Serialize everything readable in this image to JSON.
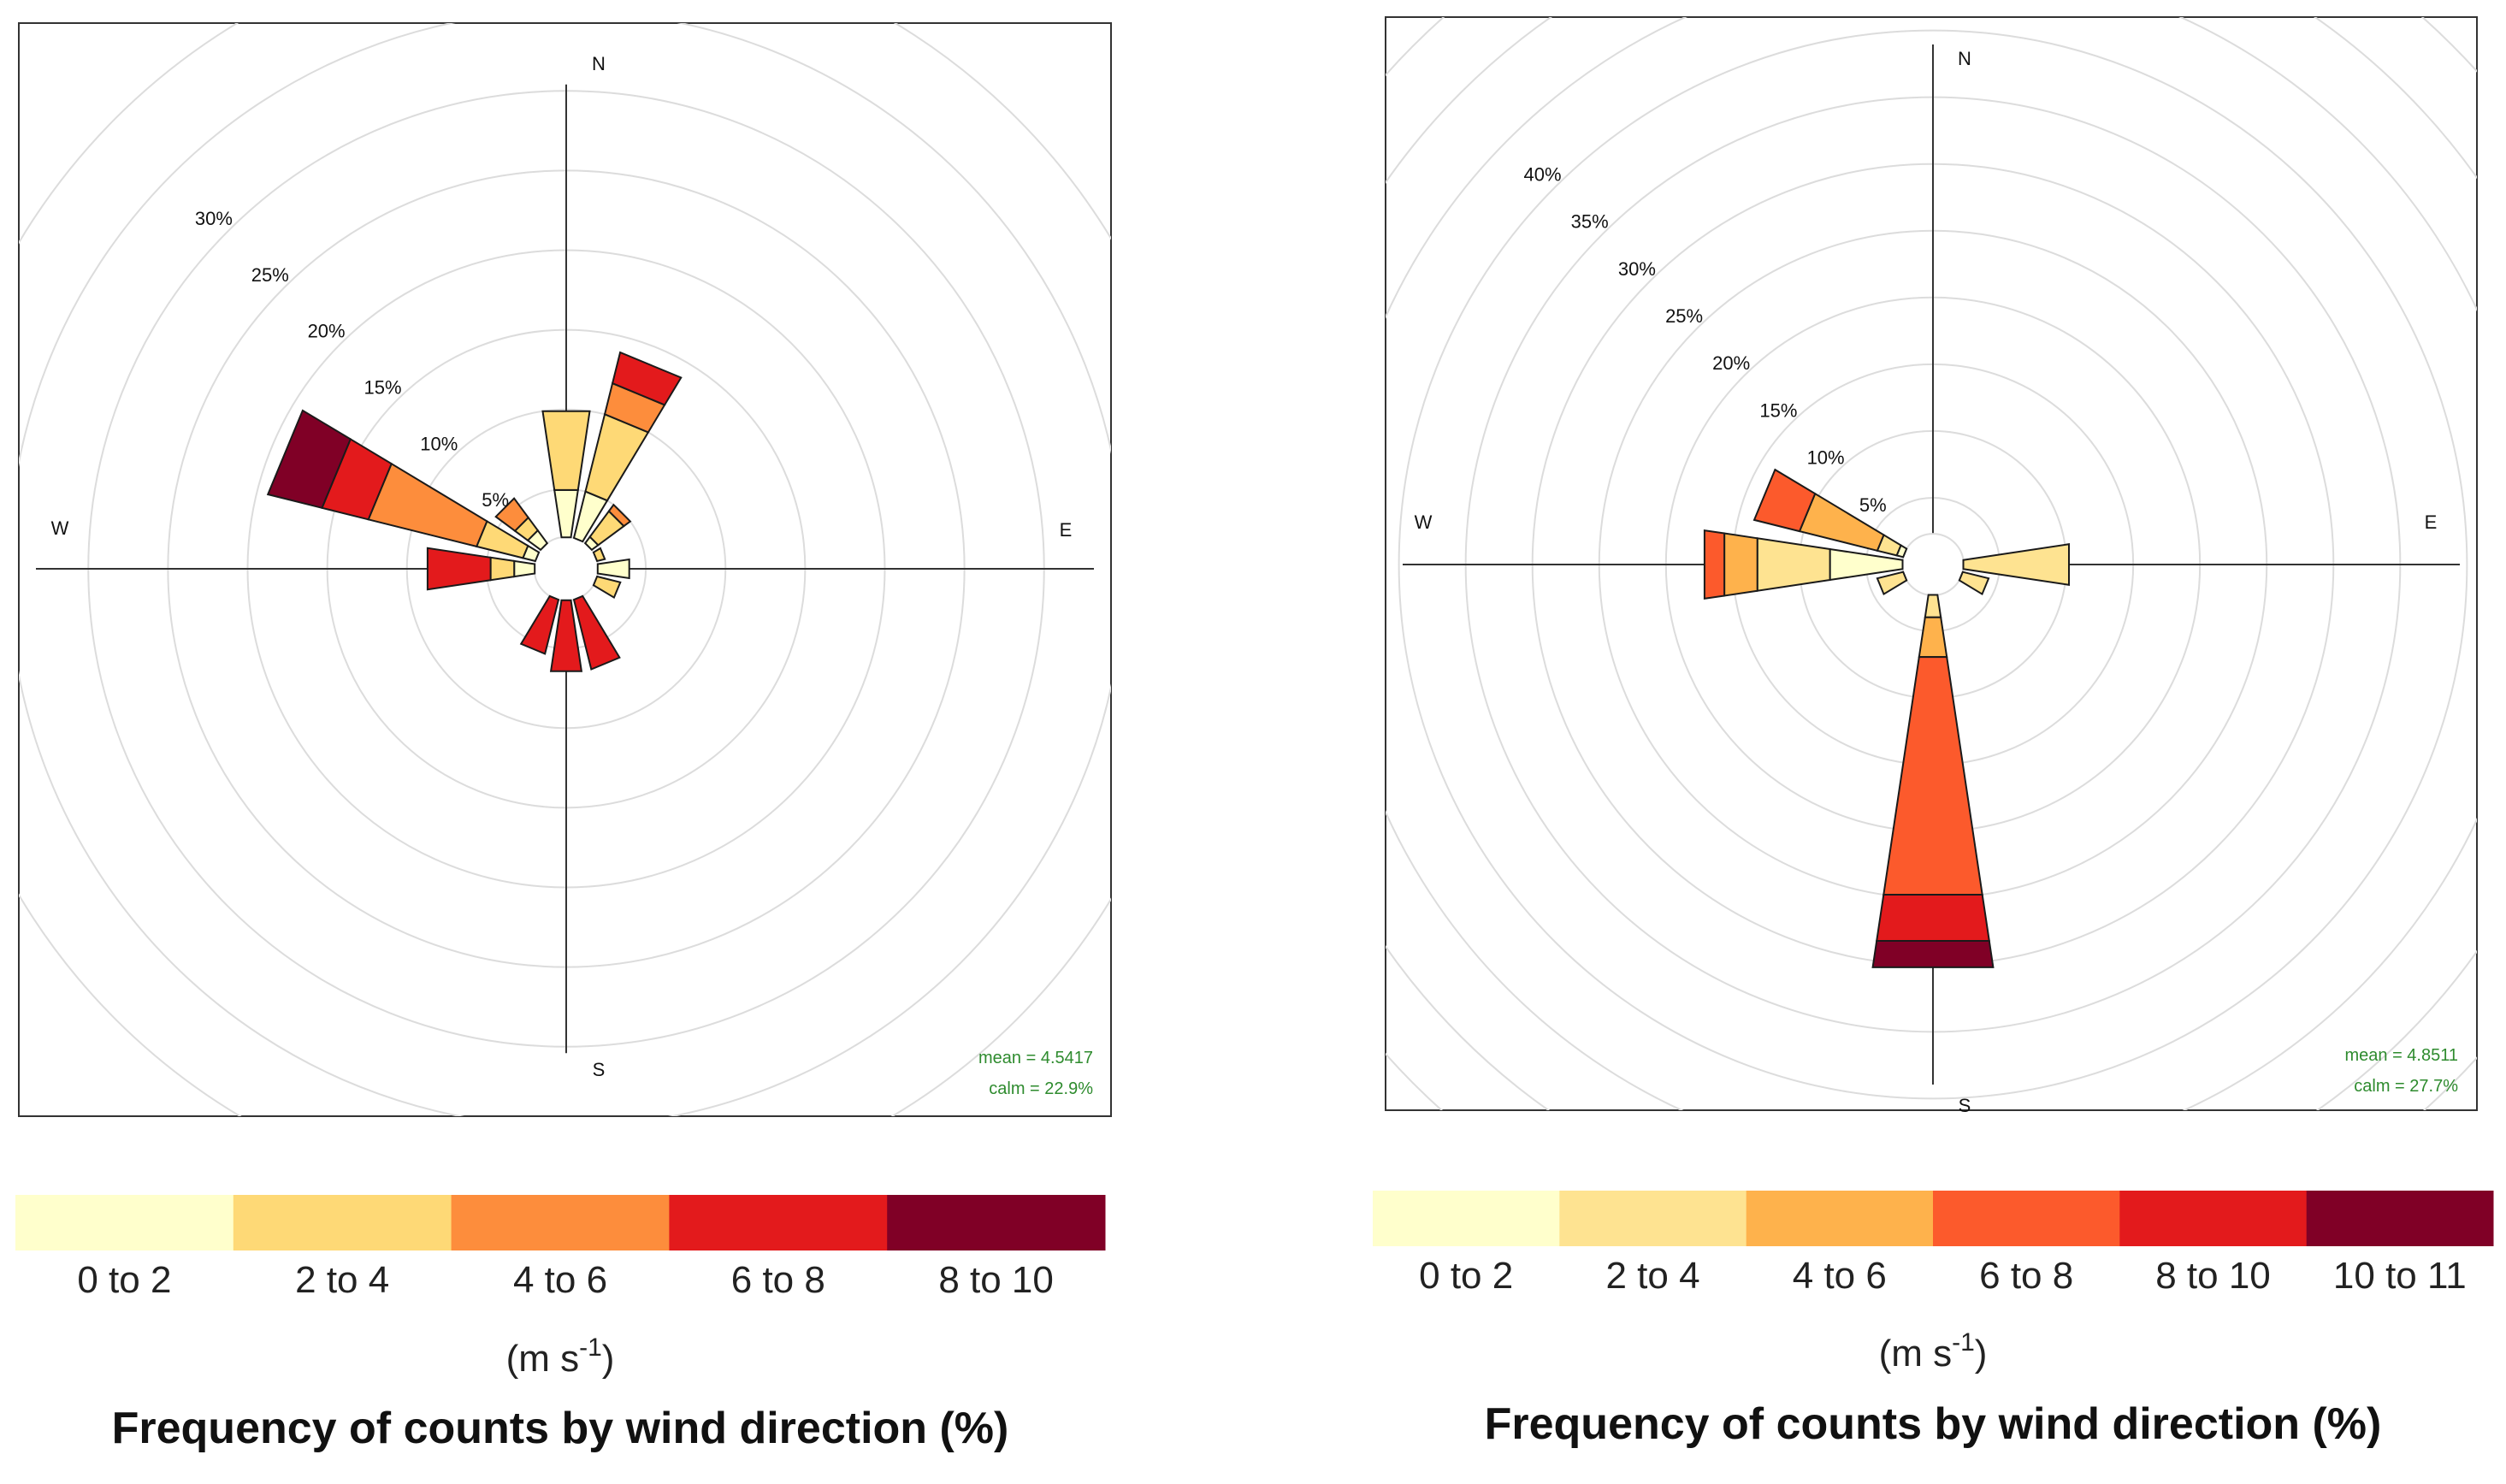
{
  "colors": {
    "grid": "#dcdcdc",
    "axis": "#333333",
    "stroke": "#1a1a1a",
    "stats_text": "#2e8b2e"
  },
  "chart_data": [
    {
      "type": "wind-rose",
      "directions": [
        "N",
        "NNE",
        "NE",
        "ENE",
        "E",
        "ESE",
        "SE",
        "SSE",
        "S",
        "SSW",
        "SW",
        "WSW",
        "W",
        "WNW",
        "NW",
        "NNW"
      ],
      "angles_deg": [
        0,
        22.5,
        45,
        67.5,
        90,
        112.5,
        135,
        157.5,
        180,
        202.5,
        225,
        247.5,
        270,
        292.5,
        315,
        337.5
      ],
      "compass_labels": [
        "N",
        "E",
        "S",
        "W"
      ],
      "radial_ticks": [
        "5%",
        "10%",
        "15%",
        "20%",
        "25%",
        "30%"
      ],
      "radial_tick_values": [
        5,
        10,
        15,
        20,
        25,
        30
      ],
      "radial_max": 32,
      "grid_ring_values": [
        5,
        10,
        15,
        20,
        25,
        30,
        35,
        40
      ],
      "calm_radius": 2,
      "bins": [
        "0 to 2",
        "2 to 4",
        "4 to 6",
        "6 to 8",
        "8 to 10"
      ],
      "bin_colors": [
        "#ffffcc",
        "#fed976",
        "#fd8d3c",
        "#e31a1c",
        "#800026"
      ],
      "petals": [
        [
          3,
          5,
          0,
          0,
          0
        ],
        [
          3,
          5,
          2,
          2,
          0
        ],
        [
          0.5,
          2,
          0.5,
          0,
          0
        ],
        [
          0,
          0.5,
          0,
          0,
          0
        ],
        [
          2,
          0,
          0,
          0,
          0
        ],
        [
          0,
          1.5,
          0,
          0,
          0
        ],
        [
          0,
          0,
          0,
          0,
          0
        ],
        [
          0,
          0,
          0,
          4.5,
          0
        ],
        [
          0,
          0,
          0,
          4.5,
          0
        ],
        [
          0,
          0,
          0,
          3.5,
          0
        ],
        [
          0,
          0,
          0,
          0,
          0
        ],
        [
          0,
          0,
          0,
          0,
          0
        ],
        [
          1.3,
          1.5,
          0,
          4,
          0
        ],
        [
          0.8,
          3,
          7,
          3,
          3.5
        ],
        [
          1,
          1,
          1.5,
          0,
          0
        ],
        [
          0,
          0,
          0,
          0,
          0
        ]
      ],
      "stats": [
        "mean = 4.5417",
        "calm = 22.9%"
      ],
      "legend_unit_prefix": "(m s",
      "legend_unit_exp": "-1",
      "legend_unit_suffix": ")",
      "legend_title": "Frequency of counts by wind direction (%)"
    },
    {
      "type": "wind-rose",
      "directions": [
        "N",
        "NNE",
        "NE",
        "ENE",
        "E",
        "ESE",
        "SE",
        "SSE",
        "S",
        "SSW",
        "SW",
        "WSW",
        "W",
        "WNW",
        "NW",
        "NNW"
      ],
      "angles_deg": [
        0,
        22.5,
        45,
        67.5,
        90,
        112.5,
        135,
        157.5,
        180,
        202.5,
        225,
        247.5,
        270,
        292.5,
        315,
        337.5
      ],
      "compass_labels": [
        "N",
        "E",
        "S",
        "W"
      ],
      "radial_ticks": [
        "5%",
        "10%",
        "15%",
        "20%",
        "25%",
        "30%",
        "35%",
        "40%"
      ],
      "radial_tick_values": [
        5,
        10,
        15,
        20,
        25,
        30,
        35,
        40
      ],
      "radial_max": 41,
      "grid_ring_values": [
        5,
        10,
        15,
        20,
        25,
        30,
        35,
        40,
        45,
        50,
        55
      ],
      "calm_radius": 2.3,
      "bins": [
        "0 to 2",
        "2 to 4",
        "4 to 6",
        "6 to 8",
        "8 to 10",
        "10 to 11"
      ],
      "bin_colors": [
        "#ffffcc",
        "#fee391",
        "#feb24c",
        "#fc5a2c",
        "#e31a1c",
        "#800026"
      ],
      "petals": [
        [
          0,
          0,
          0,
          0,
          0,
          0
        ],
        [
          0,
          0,
          0,
          0,
          0,
          0
        ],
        [
          0,
          0,
          0,
          0,
          0,
          0
        ],
        [
          0,
          0,
          0,
          0,
          0,
          0
        ],
        [
          0,
          8,
          0,
          0,
          0,
          0
        ],
        [
          0,
          2,
          0,
          0,
          0,
          0
        ],
        [
          0,
          0,
          0,
          0,
          0,
          0
        ],
        [
          0,
          0,
          0,
          0,
          0,
          0
        ],
        [
          0,
          1.7,
          3,
          18,
          3.5,
          2
        ],
        [
          0,
          0,
          0,
          0,
          0,
          0
        ],
        [
          0,
          0,
          0,
          0,
          0,
          0
        ],
        [
          0,
          2,
          0,
          0,
          0,
          0
        ],
        [
          5.5,
          5.5,
          2.5,
          1.5,
          0,
          0
        ],
        [
          0.5,
          1.5,
          6,
          3.5,
          0,
          0
        ],
        [
          0,
          0,
          0,
          0,
          0,
          0
        ],
        [
          0,
          0,
          0,
          0,
          0,
          0
        ]
      ],
      "stats": [
        "mean = 4.8511",
        "calm = 27.7%"
      ],
      "legend_unit_prefix": "(m s",
      "legend_unit_exp": "-1",
      "legend_unit_suffix": ")",
      "legend_title": "Frequency of counts by wind direction (%)"
    }
  ]
}
